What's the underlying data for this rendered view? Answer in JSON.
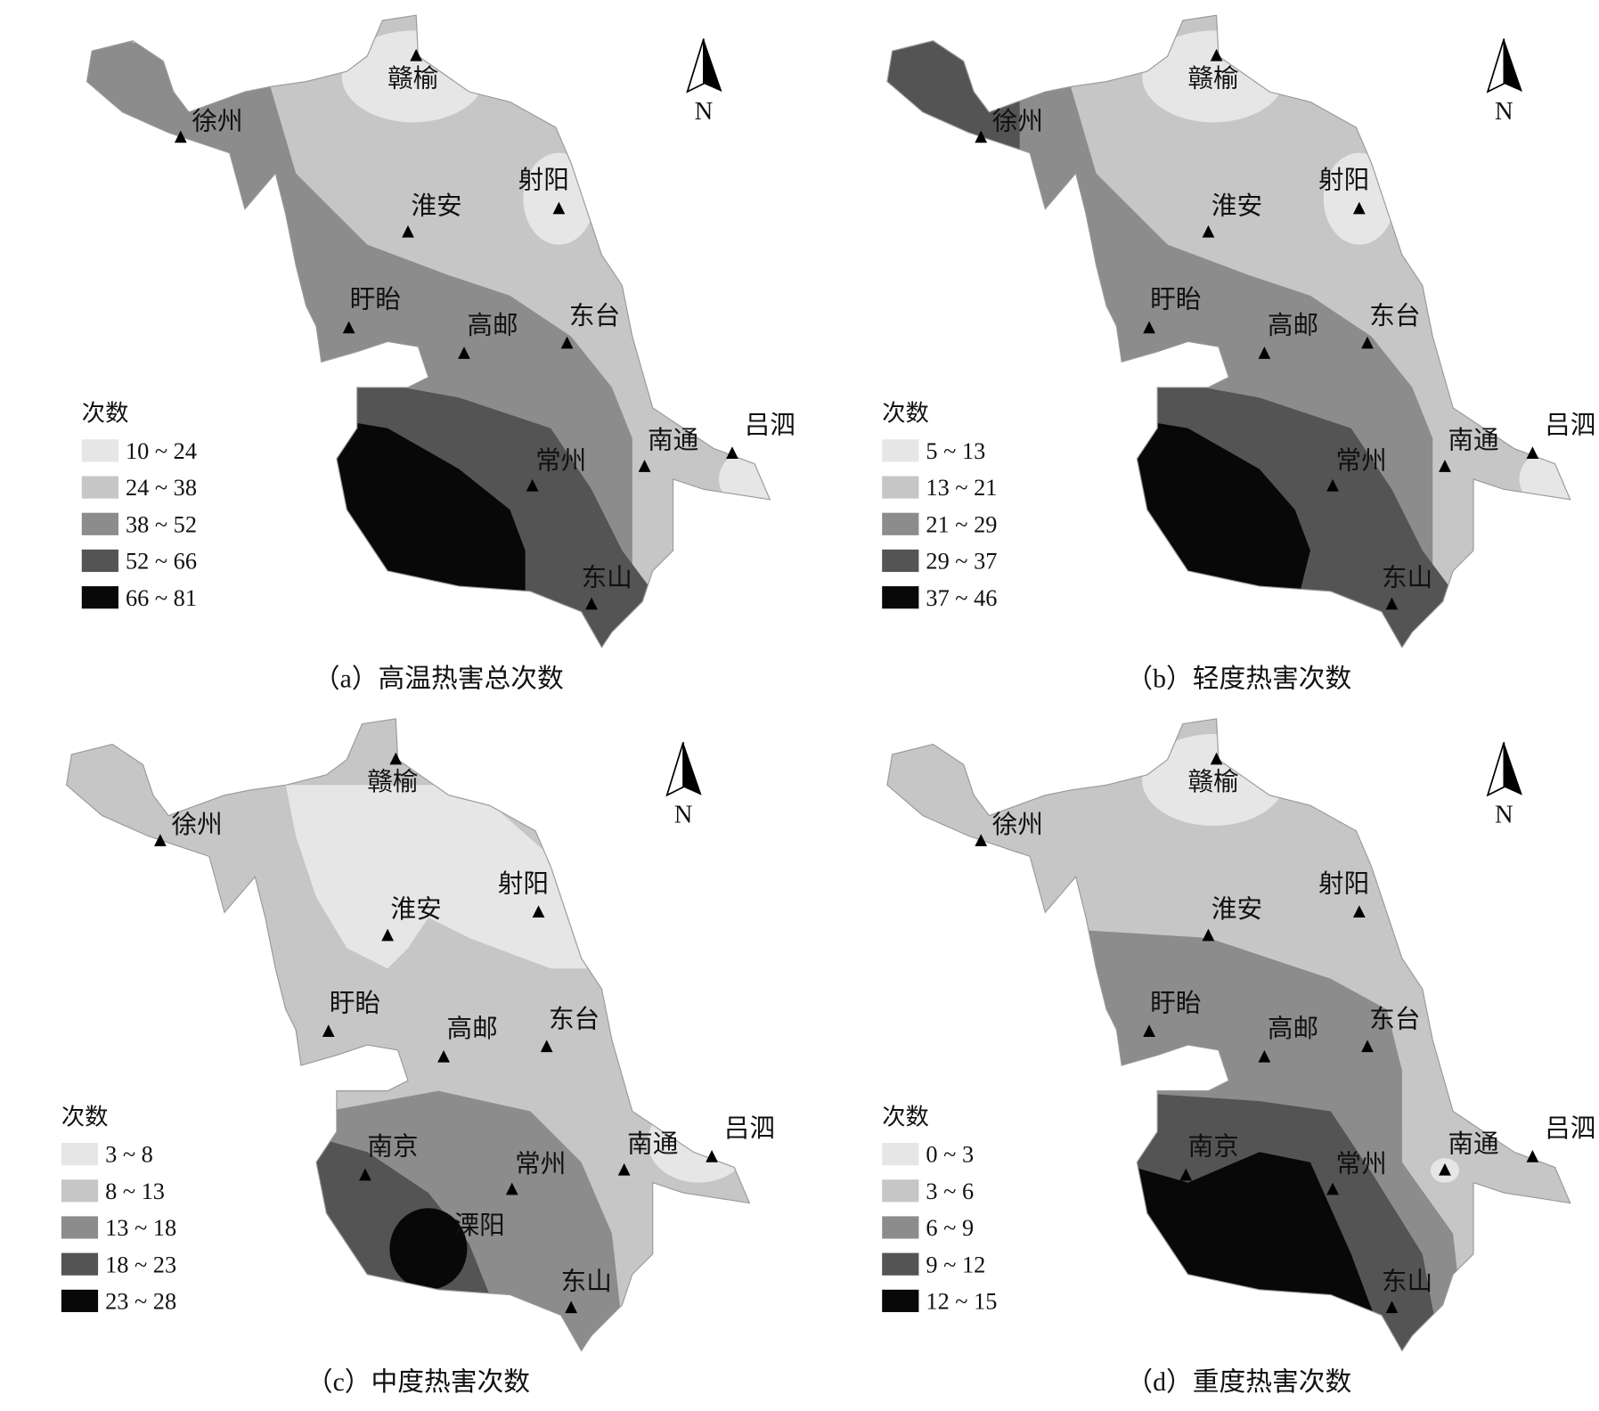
{
  "panels": [
    {
      "caption": "（a）高温热害总次数",
      "legend": {
        "title": "次数",
        "items": [
          "10 ~ 24",
          "24 ~ 38",
          "38 ~ 52",
          "52 ~ 66",
          "66 ~ 81"
        ]
      },
      "north": "N",
      "stations": [
        "赣榆",
        "徐州",
        "淮安",
        "射阳",
        "盱眙",
        "高邮",
        "东台",
        "南通",
        "吕泗",
        "常州",
        "东山"
      ]
    },
    {
      "caption": "（b）轻度热害次数",
      "legend": {
        "title": "次数",
        "items": [
          "5 ~ 13",
          "13 ~ 21",
          "21 ~ 29",
          "29 ~ 37",
          "37 ~ 46"
        ]
      },
      "north": "N",
      "stations": [
        "赣榆",
        "徐州",
        "淮安",
        "射阳",
        "盱眙",
        "高邮",
        "东台",
        "南通",
        "吕泗",
        "常州",
        "东山"
      ]
    },
    {
      "caption": "（c）中度热害次数",
      "legend": {
        "title": "次数",
        "items": [
          "3 ~ 8",
          "8 ~ 13",
          "13 ~ 18",
          "18 ~ 23",
          "23 ~ 28"
        ]
      },
      "north": "N",
      "stations": [
        "赣榆",
        "徐州",
        "淮安",
        "射阳",
        "盱眙",
        "高邮",
        "东台",
        "南通",
        "吕泗",
        "常州",
        "东山",
        "南京",
        "溧阳"
      ]
    },
    {
      "caption": "（d）重度热害次数",
      "legend": {
        "title": "次数",
        "items": [
          "0 ~ 3",
          "3 ~ 6",
          "6 ~ 9",
          "9 ~ 12",
          "12 ~ 15"
        ]
      },
      "north": "N",
      "stations": [
        "赣榆",
        "徐州",
        "淮安",
        "射阳",
        "盱眙",
        "高邮",
        "东台",
        "南通",
        "吕泗",
        "常州",
        "东山",
        "南京"
      ]
    }
  ]
}
